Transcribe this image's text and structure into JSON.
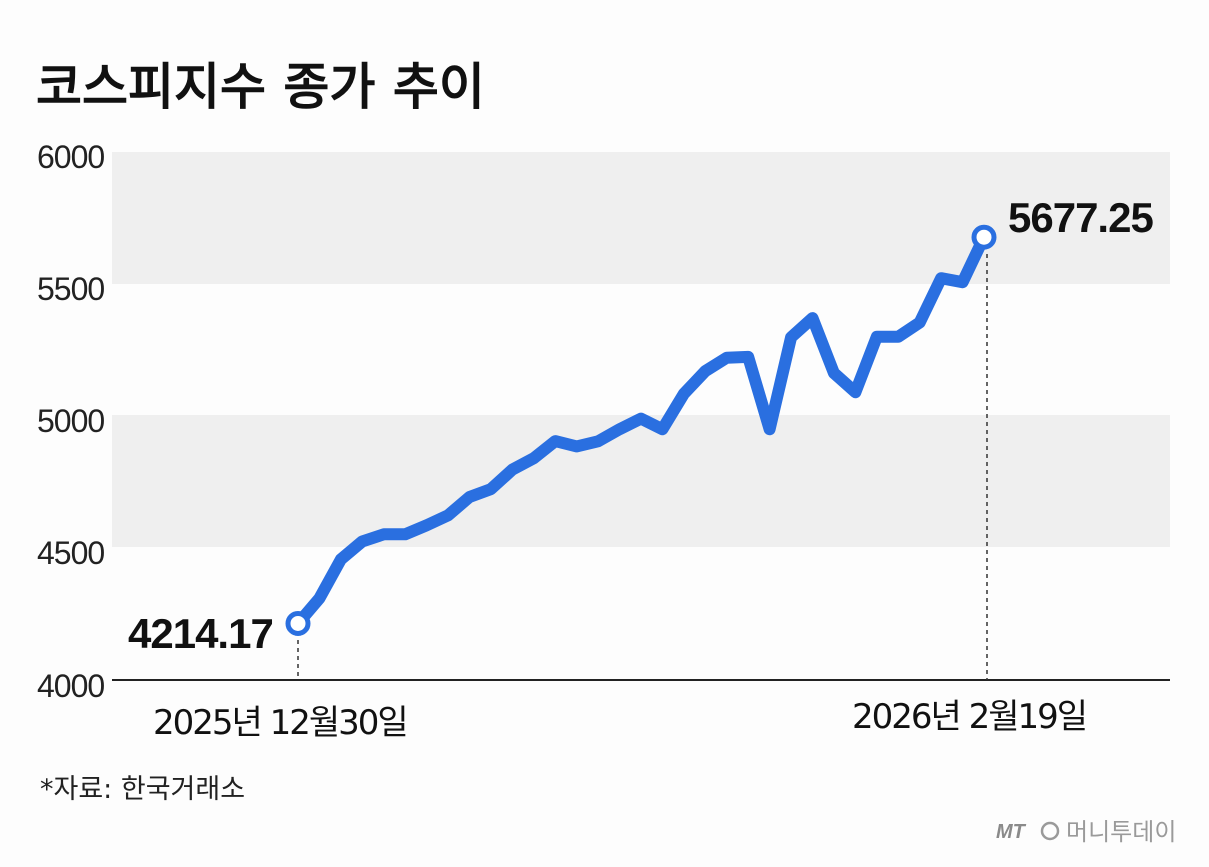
{
  "title": "코스피지수 종가 추이",
  "source": "*자료: 한국거래소",
  "logo": {
    "prefix": "MT",
    "name": "머니투데이"
  },
  "colors": {
    "line": "#2a6fe0",
    "band": "#efefef",
    "axis": "#222222"
  },
  "chart_data": {
    "type": "line",
    "title": "코스피지수 종가 추이",
    "xlabel": "",
    "ylabel": "",
    "ylim": [
      4000,
      6000
    ],
    "yticks": [
      6000,
      5500,
      5000,
      4500,
      4000
    ],
    "grid": "alternating horizontal bands",
    "x_labels": {
      "start": "2025년 12월30일",
      "end": "2026년 2월19일"
    },
    "annotations": {
      "start_value": "4214.17",
      "end_value": "5677.25"
    },
    "series": [
      {
        "values": [
          4214.17,
          4309,
          4457,
          4525,
          4552,
          4552,
          4586,
          4624,
          4693,
          4723,
          4797,
          4840,
          4905,
          4885,
          4904,
          4950,
          4990,
          4950,
          5084,
          5170,
          5221,
          5224,
          4950,
          5298,
          5371,
          5163,
          5090,
          5300,
          5300,
          5354,
          5522,
          5507,
          5677.25
        ]
      }
    ]
  }
}
